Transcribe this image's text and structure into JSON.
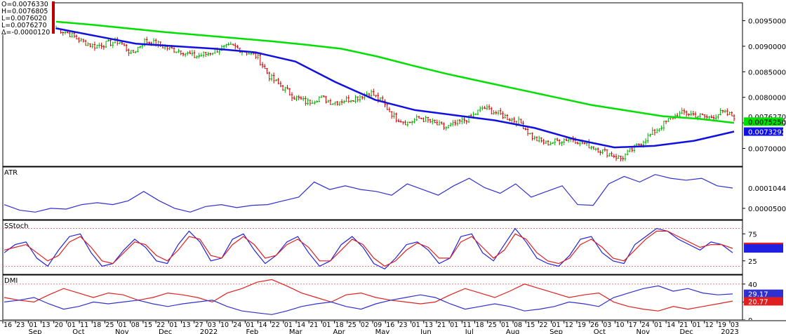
{
  "ohlc_box": {
    "lines": [
      "O=0.0076330",
      "H=0.0076805",
      "L=0.0076020",
      "L=0.0076270",
      "Δ=-0.0000120"
    ]
  },
  "chart_data": [
    {
      "id": "price",
      "type": "candlestick",
      "ylim": [
        0.00665,
        0.00985
      ],
      "y_ticks": [
        0.007,
        0.0075,
        0.008,
        0.0085,
        0.009,
        0.0095
      ],
      "y_tick_labels": [
        "0.0070000",
        "0.0075000",
        "0.0080000",
        "0.0085000",
        "0.0090000",
        "0.0095000"
      ],
      "price_path": [
        0.00935,
        0.00925,
        0.0091,
        0.009,
        0.00905,
        0.0091,
        0.00885,
        0.0091,
        0.00905,
        0.00895,
        0.0089,
        0.0088,
        0.00885,
        0.00895,
        0.009,
        0.0089,
        0.0088,
        0.0084,
        0.0082,
        0.008,
        0.0079,
        0.008,
        0.0079,
        0.00795,
        0.008,
        0.0081,
        0.0079,
        0.0076,
        0.0075,
        0.0076,
        0.0075,
        0.0074,
        0.0075,
        0.0076,
        0.0078,
        0.0077,
        0.0076,
        0.0075,
        0.0072,
        0.0071,
        0.00715,
        0.0072,
        0.0071,
        0.007,
        0.0069,
        0.0068,
        0.007,
        0.0072,
        0.0074,
        0.0076,
        0.0077,
        0.00765,
        0.0076,
        0.0077,
        0.00763
      ],
      "series": [
        {
          "name": "",
          "color": "#00e000",
          "values": [
            0.00948,
            0.00942,
            0.00935,
            0.00928,
            0.00922,
            0.00916,
            0.0091,
            0.00903,
            0.00895,
            0.0088,
            0.00862,
            0.00845,
            0.0083,
            0.00815,
            0.008,
            0.00785,
            0.00774,
            0.00763,
            0.00758,
            0.0075
          ]
        },
        {
          "name": "",
          "color": "#1010e0",
          "values": [
            0.00935,
            0.0092,
            0.00905,
            0.009,
            0.00895,
            0.00888,
            0.0087,
            0.0083,
            0.00795,
            0.00775,
            0.00765,
            0.00755,
            0.0074,
            0.00718,
            0.00702,
            0.00705,
            0.00715,
            0.00733
          ]
        }
      ],
      "last_labels": [
        {
          "text": "0.0076270",
          "value": 0.007627,
          "bg": "#ffffff",
          "fg": "#000000"
        },
        {
          "text": "0.0075250",
          "value": 0.007525,
          "bg": "#00e000",
          "fg": "#000000"
        },
        {
          "text": "0.0073292",
          "value": 0.0073292,
          "bg": "#1010e0",
          "fg": "#ffffff"
        }
      ]
    },
    {
      "id": "atr",
      "type": "line",
      "title": "ATR",
      "ylim": [
        2e-05,
        0.00016
      ],
      "y_ticks": [
        5e-05
      ],
      "y_tick_labels": [
        "0.0000500"
      ],
      "series": [
        {
          "name": "ATR",
          "color": "#3030d0",
          "values": [
            6e-05,
            4.5e-05,
            4e-05,
            5e-05,
            4.8e-05,
            6e-05,
            6.5e-05,
            6e-05,
            7e-05,
            9.5e-05,
            7e-05,
            5e-05,
            4e-05,
            5.5e-05,
            6e-05,
            5.2e-05,
            5.8e-05,
            6e-05,
            7e-05,
            8e-05,
            0.00012,
            0.0001,
            0.00011,
            0.0001,
            9.5e-05,
            8.5e-05,
            0.000115,
            0.0001,
            8.5e-05,
            0.00011,
            0.00013,
            0.000105,
            9e-05,
            0.000115,
            8e-05,
            9.5e-05,
            0.00011,
            6e-05,
            5.8e-05,
            0.000115,
            0.000135,
            0.00012,
            0.00014,
            0.00013,
            0.000125,
            0.00013,
            0.00011,
            0.000104
          ]
        }
      ],
      "last_labels": [
        {
          "text": "0.0001044",
          "value": 0.0001044,
          "bg": "#ffffff",
          "fg": "#000000"
        }
      ]
    },
    {
      "id": "sstoch",
      "type": "line",
      "title": "SStoch",
      "ylim": [
        0,
        100
      ],
      "y_ticks": [
        25,
        75
      ],
      "y_tick_labels": [
        "25",
        "75"
      ],
      "ref_lines": [
        85,
        15
      ],
      "series": [
        {
          "name": "",
          "color": "#2020e0",
          "values": [
            40,
            55,
            60,
            30,
            15,
            45,
            70,
            75,
            40,
            15,
            20,
            45,
            65,
            50,
            25,
            20,
            55,
            80,
            60,
            25,
            30,
            65,
            75,
            45,
            20,
            35,
            60,
            70,
            40,
            15,
            25,
            55,
            70,
            50,
            20,
            10,
            30,
            55,
            60,
            45,
            20,
            30,
            70,
            75,
            40,
            25,
            55,
            85,
            60,
            30,
            20,
            15,
            35,
            65,
            70,
            40,
            25,
            20,
            55,
            70,
            85,
            80,
            65,
            55,
            45,
            60,
            55,
            40
          ]
        },
        {
          "name": "",
          "color": "#e02020",
          "values": [
            45,
            50,
            55,
            40,
            25,
            35,
            60,
            70,
            50,
            25,
            20,
            40,
            60,
            55,
            35,
            25,
            45,
            70,
            65,
            35,
            30,
            55,
            70,
            55,
            30,
            35,
            55,
            65,
            50,
            25,
            25,
            45,
            65,
            55,
            30,
            15,
            25,
            45,
            58,
            50,
            30,
            30,
            60,
            70,
            50,
            30,
            45,
            75,
            65,
            40,
            25,
            20,
            30,
            55,
            65,
            50,
            30,
            25,
            45,
            65,
            80,
            80,
            70,
            60,
            50,
            55,
            55,
            48
          ]
        }
      ],
      "last_labels": [
        {
          "text": "50.9",
          "value": 50.9,
          "bg": "#e02020",
          "fg": "#ffffff"
        },
        {
          "text": "",
          "value": 48,
          "bg": "#2020e0",
          "fg": "#ffffff"
        }
      ]
    },
    {
      "id": "dmi",
      "type": "line",
      "title": "DMI",
      "ylim": [
        0,
        50
      ],
      "y_ticks": [
        0,
        20,
        40
      ],
      "y_tick_labels": [
        "0",
        "20",
        "40"
      ],
      "ref_lines": [
        40
      ],
      "series": [
        {
          "name": "",
          "color": "#e02020",
          "values": [
            25,
            22,
            20,
            28,
            35,
            30,
            25,
            30,
            28,
            22,
            25,
            30,
            28,
            25,
            20,
            30,
            35,
            42,
            45,
            38,
            30,
            25,
            20,
            28,
            30,
            25,
            22,
            20,
            18,
            20,
            28,
            35,
            30,
            25,
            32,
            40,
            35,
            30,
            25,
            28,
            30,
            20,
            15,
            12,
            10,
            15,
            12,
            15,
            18,
            21
          ]
        },
        {
          "name": "",
          "color": "#3030d0",
          "values": [
            20,
            22,
            25,
            18,
            12,
            15,
            20,
            18,
            20,
            22,
            18,
            15,
            18,
            20,
            22,
            15,
            10,
            8,
            6,
            10,
            15,
            18,
            20,
            15,
            12,
            18,
            22,
            25,
            28,
            25,
            18,
            12,
            15,
            18,
            15,
            10,
            12,
            15,
            20,
            18,
            15,
            25,
            30,
            35,
            38,
            32,
            35,
            30,
            28,
            29
          ]
        }
      ],
      "last_labels": [
        {
          "text": "29.17",
          "value": 29.17,
          "bg": "#3030d0",
          "fg": "#ffffff"
        },
        {
          "text": "20.77",
          "value": 20.77,
          "bg": "#e02020",
          "fg": "#ffffff"
        }
      ]
    }
  ],
  "x_axis": {
    "day_ticks": [
      "16",
      "23",
      "01",
      "13",
      "20",
      "01",
      "11",
      "18",
      "25",
      "01",
      "08",
      "15",
      "22",
      "01",
      "13",
      "27",
      "03",
      "10",
      "24",
      "01",
      "14",
      "22",
      "01",
      "14",
      "21",
      "01",
      "18",
      "25",
      "02",
      "09",
      "16",
      "23",
      "01",
      "13",
      "21",
      "01",
      "11",
      "18",
      "25",
      "01",
      "08",
      "15",
      "22",
      "01",
      "12",
      "19",
      "26",
      "03",
      "10",
      "17",
      "24",
      "01",
      "14",
      "21",
      "01",
      "12",
      "19",
      "03"
    ],
    "months": [
      "Sep",
      "Oct",
      "Nov",
      "Dec",
      "2022",
      "Feb",
      "Mar",
      "Apr",
      "May",
      "Jun",
      "Jul",
      "Aug",
      "Sep",
      "Oct",
      "Nov",
      "Dec",
      "2023"
    ]
  }
}
